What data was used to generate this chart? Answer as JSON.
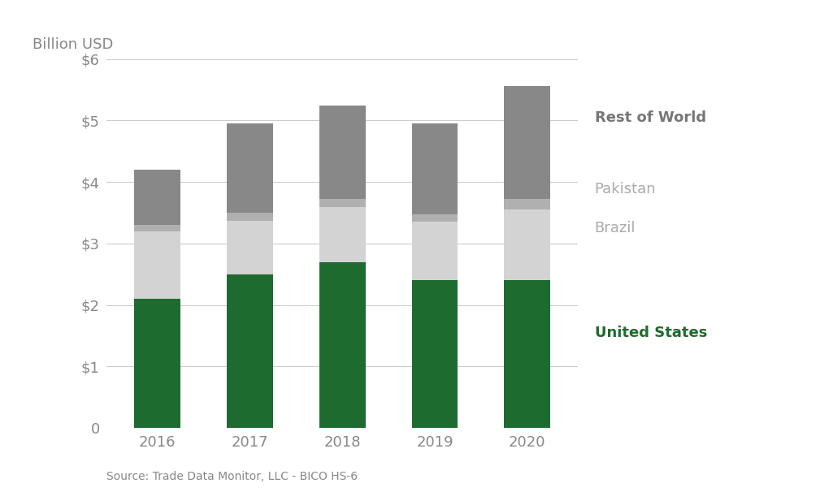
{
  "years": [
    "2016",
    "2017",
    "2018",
    "2019",
    "2020"
  ],
  "series": {
    "United States": [
      2.1,
      2.5,
      2.7,
      2.4,
      2.4
    ],
    "Brazil": [
      1.1,
      0.87,
      0.9,
      0.95,
      1.15
    ],
    "Pakistan": [
      0.1,
      0.13,
      0.12,
      0.13,
      0.18
    ],
    "Rest of World": [
      0.9,
      1.45,
      1.53,
      1.47,
      1.83
    ]
  },
  "colors": {
    "United States": "#1e6b30",
    "Brazil": "#d3d3d3",
    "Pakistan": "#b0b0b0",
    "Rest of World": "#888888"
  },
  "legend_text_colors": {
    "United States": "#1e6b30",
    "Brazil": "#aaaaaa",
    "Pakistan": "#aaaaaa",
    "Rest of World": "#777777"
  },
  "legend_fontweights": {
    "United States": "bold",
    "Brazil": "normal",
    "Pakistan": "normal",
    "Rest of World": "bold"
  },
  "ylabel_top": "Billion USD",
  "ylim": [
    0,
    6
  ],
  "yticks": [
    0,
    1,
    2,
    3,
    4,
    5,
    6
  ],
  "ytick_labels": [
    "0",
    "$1",
    "$2",
    "$3",
    "$4",
    "$5",
    "$6"
  ],
  "source_text": "Source: Trade Data Monitor, LLC - BICO HS-6",
  "background_color": "#ffffff",
  "bar_width": 0.5,
  "series_order": [
    "United States",
    "Brazil",
    "Pakistan",
    "Rest of World"
  ],
  "legend_order": [
    "Rest of World",
    "Pakistan",
    "Brazil",
    "United States"
  ]
}
